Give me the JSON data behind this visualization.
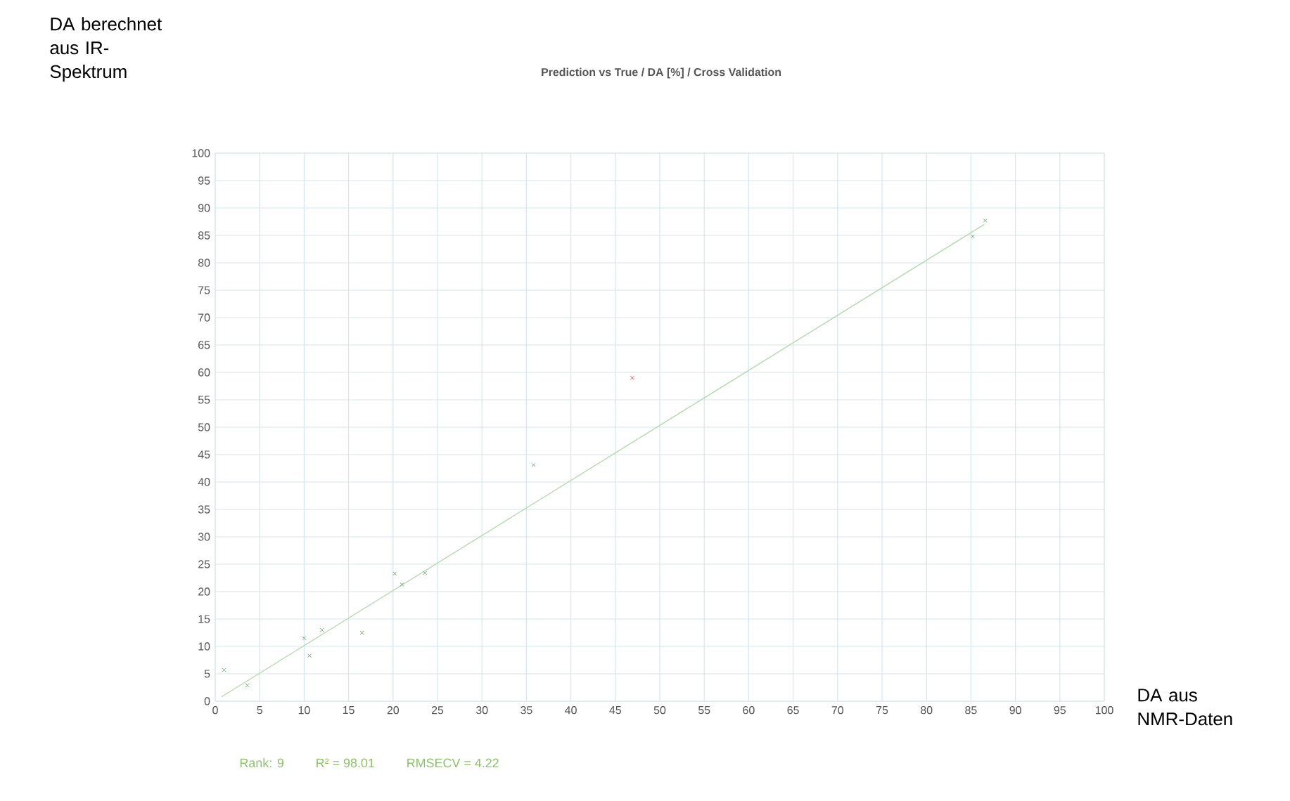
{
  "chart_data": {
    "type": "scatter",
    "title": "Prediction vs True  /  DA [%]  /  Cross Validation",
    "xlabel": "DA aus NMR-Daten",
    "ylabel": "DA berechnet aus IR-Spektrum",
    "annotations": [
      "Rank: 9",
      "R² = 98.01",
      "RMSECV = 4.22"
    ],
    "series": [
      {
        "type": "scatter",
        "color": "#4a9a4a",
        "marker": "cross",
        "x": [
          1.0,
          3.6,
          10.0,
          10.6,
          12.0,
          16.5,
          20.2,
          21.0,
          23.6,
          35.8,
          85.2,
          86.6
        ],
        "values": [
          5.7,
          2.9,
          11.5,
          8.3,
          13.0,
          12.5,
          23.3,
          21.3,
          23.4,
          43.1,
          84.8,
          87.7
        ]
      },
      {
        "type": "scatter",
        "color": "#e03030",
        "marker": "cross",
        "x": [
          46.9
        ],
        "values": [
          59.0
        ]
      },
      {
        "type": "line",
        "color": "#b5d8b0",
        "marker": "none",
        "line_style": "solid",
        "x": [
          0.7,
          86.5
        ],
        "values": [
          0.8,
          87.0
        ]
      }
    ],
    "xlim": [
      0,
      100
    ],
    "ylim": [
      0,
      100
    ],
    "xticks": [
      0,
      5,
      10,
      15,
      20,
      25,
      30,
      35,
      40,
      45,
      50,
      55,
      60,
      65,
      70,
      75,
      80,
      85,
      90,
      95,
      100
    ],
    "yticks": [
      0,
      5,
      10,
      15,
      20,
      25,
      30,
      35,
      40,
      45,
      50,
      55,
      60,
      65,
      70,
      75,
      80,
      85,
      90,
      95,
      100
    ],
    "grid": true
  }
}
